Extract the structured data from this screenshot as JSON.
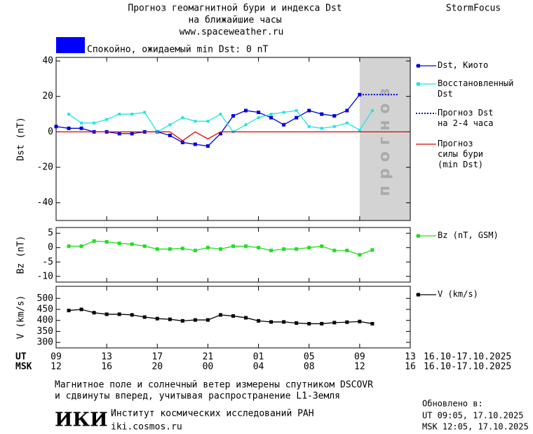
{
  "header": {
    "title": "Прогноз геомагнитной бури и индекса Dst",
    "subtitle": "на ближайшие часы",
    "url": "www.spaceweather.ru",
    "brand": "StormFocus"
  },
  "status": {
    "text": "Спокойно, ожидаемый min Dst: 0 nT",
    "color": "#0000ff"
  },
  "chart_data": [
    {
      "type": "line",
      "y_label": "Dst (nT)",
      "ylim": [
        -50,
        42
      ],
      "yticks": [
        40,
        20,
        0,
        -20,
        -40
      ],
      "forecast_label": "прогноз",
      "series": [
        {
          "name": "Dst, Киото",
          "color": "#0000dd",
          "marker": true,
          "dash": "solid",
          "values": [
            3,
            2,
            2,
            0,
            0,
            -1,
            -1,
            0,
            0,
            -2,
            -6,
            -7,
            -8,
            -1,
            9,
            12,
            11,
            8,
            4,
            8,
            12,
            10,
            9,
            12,
            21,
            null,
            null,
            null,
            null
          ]
        },
        {
          "name": "Восстановленный\nDst",
          "color": "#22e5e5",
          "marker": true,
          "dash": "solid",
          "values": [
            null,
            10,
            5,
            5,
            7,
            10,
            10,
            11,
            0,
            4,
            8,
            6,
            6,
            10,
            0,
            4,
            8,
            10,
            11,
            12,
            3,
            2,
            3,
            5,
            1,
            12,
            null,
            null,
            null
          ]
        },
        {
          "name": "Прогноз Dst\nна 2-4 часа",
          "color": "#0000dd",
          "marker": false,
          "dash": "dotted",
          "values": [
            null,
            null,
            null,
            null,
            null,
            null,
            null,
            null,
            null,
            null,
            null,
            null,
            null,
            null,
            null,
            null,
            null,
            null,
            null,
            null,
            null,
            null,
            null,
            null,
            21,
            21,
            21,
            21,
            null
          ]
        },
        {
          "name": "Прогноз\nсилы бури\n(min Dst)",
          "color": "#dd0000",
          "marker": false,
          "dash": "solid",
          "values": [
            0,
            0,
            0,
            0,
            0,
            0,
            0,
            0,
            0,
            0,
            -5,
            0,
            -4,
            0,
            0,
            0,
            0,
            0,
            0,
            0,
            0,
            0,
            0,
            0,
            0,
            0,
            0,
            0,
            0
          ]
        }
      ]
    },
    {
      "type": "line",
      "y_label": "Bz (nT)",
      "ylim": [
        -12,
        7
      ],
      "yticks": [
        5,
        0,
        -5,
        -10
      ],
      "series": [
        {
          "name": "Bz (nT, GSM)",
          "color": "#22dd22",
          "marker": true,
          "dash": "solid",
          "values": [
            null,
            0.5,
            0.5,
            2.3,
            2,
            1.5,
            1.2,
            0.5,
            -0.5,
            -0.5,
            -0.3,
            -1,
            0,
            -0.5,
            0.5,
            0.5,
            0,
            -1,
            -0.5,
            -0.5,
            0,
            0.5,
            -1,
            -1,
            -2.5,
            -0.8,
            null,
            null,
            null
          ]
        }
      ]
    },
    {
      "type": "line",
      "y_label": "V (km/s)",
      "ylim": [
        275,
        555
      ],
      "yticks": [
        500,
        450,
        400,
        350,
        300
      ],
      "x_label": "UT",
      "x2_label": "MSK",
      "date_range": "16.10-17.10.2025",
      "date_range_msk": "16.10-17.10.2025",
      "categories": [
        "09",
        null,
        null,
        null,
        "13",
        null,
        null,
        null,
        "17",
        null,
        null,
        null,
        "21",
        null,
        null,
        null,
        "01",
        null,
        null,
        null,
        "05",
        null,
        null,
        null,
        "09",
        null,
        null,
        null,
        "13"
      ],
      "categories_msk": [
        "12",
        null,
        null,
        null,
        "16",
        null,
        null,
        null,
        "20",
        null,
        null,
        null,
        "00",
        null,
        null,
        null,
        "04",
        null,
        null,
        null,
        "08",
        null,
        null,
        null,
        "12",
        null,
        null,
        null,
        "16"
      ],
      "series": [
        {
          "name": "V (km/s)",
          "color": "#000000",
          "marker": true,
          "dash": "solid",
          "values": [
            null,
            445,
            450,
            435,
            428,
            428,
            425,
            415,
            408,
            405,
            398,
            402,
            402,
            425,
            420,
            412,
            398,
            393,
            393,
            388,
            385,
            385,
            390,
            392,
            395,
            385,
            null,
            null,
            null
          ]
        }
      ]
    }
  ],
  "footer": {
    "note1": "Магнитное поле и солнечный ветер измерены спутником DSCOVR",
    "note2": "и сдвинуты вперед, учитывая распространение L1-Земля",
    "logo": "ИКИ",
    "institute": "Институт космических исследований РАН",
    "site": "iki.cosmos.ru",
    "updated": "Обновлено в:",
    "updated_ut": "UT  09:05, 17.10.2025",
    "updated_msk": "MSK 12:05, 17.10.2025"
  }
}
